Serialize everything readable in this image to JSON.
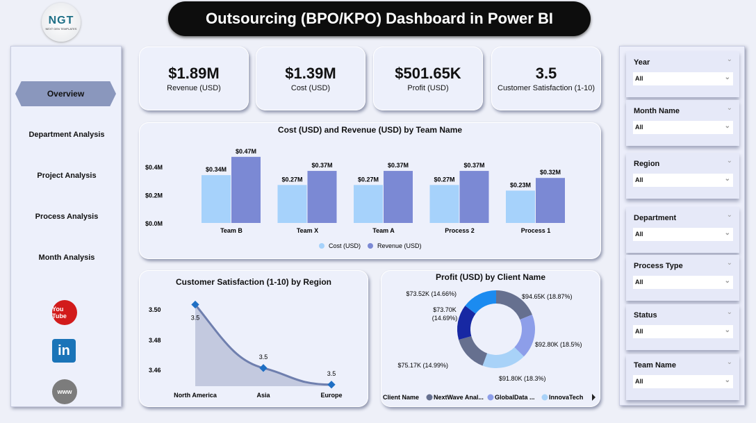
{
  "header": {
    "title": "Outsourcing (BPO/KPO) Dashboard in Power BI",
    "logo_text": "NGT",
    "logo_sub": "NEXT GEN TEMPLATES"
  },
  "nav": {
    "items": [
      {
        "label": "Overview",
        "active": true
      },
      {
        "label": "Department Analysis"
      },
      {
        "label": "Project Analysis"
      },
      {
        "label": "Process Analysis"
      },
      {
        "label": "Month Analysis"
      }
    ],
    "social": [
      {
        "icon": "youtube-icon",
        "label": "You Tube"
      },
      {
        "icon": "linkedin-icon",
        "label": "in"
      },
      {
        "icon": "globe-icon",
        "label": "www"
      }
    ]
  },
  "kpis": [
    {
      "value": "$1.89M",
      "label": "Revenue (USD)"
    },
    {
      "value": "$1.39M",
      "label": "Cost (USD)"
    },
    {
      "value": "$501.65K",
      "label": "Profit (USD)"
    },
    {
      "value": "3.5",
      "label": "Customer Satisfaction (1-10)"
    }
  ],
  "chart_data": [
    {
      "type": "bar",
      "title": "Cost (USD) and Revenue (USD) by Team Name",
      "categories": [
        "Team B",
        "Team X",
        "Team A",
        "Process 2",
        "Process 1"
      ],
      "series": [
        {
          "name": "Cost (USD)",
          "values": [
            0.34,
            0.27,
            0.27,
            0.27,
            0.23
          ],
          "labels": [
            "$0.34M",
            "$0.27M",
            "$0.27M",
            "$0.27M",
            "$0.23M"
          ],
          "color": "#a6d2fb"
        },
        {
          "name": "Revenue (USD)",
          "values": [
            0.47,
            0.37,
            0.37,
            0.37,
            0.32
          ],
          "labels": [
            "$0.47M",
            "$0.37M",
            "$0.37M",
            "$0.37M",
            "$0.32M"
          ],
          "color": "#7b89d4"
        }
      ],
      "yticks": [
        "$0.0M",
        "$0.2M",
        "$0.4M"
      ],
      "ylim": [
        0,
        0.5
      ],
      "legend": "bottom"
    },
    {
      "type": "area",
      "title": "Customer Satisfaction (1-10) by Region",
      "categories": [
        "North America",
        "Asia",
        "Europe"
      ],
      "values": [
        3.503,
        3.461,
        3.45
      ],
      "labels": [
        "3.5",
        "3.5",
        "3.5"
      ],
      "yticks": [
        "3.46",
        "3.48",
        "3.50"
      ],
      "color": "#6f7fae"
    },
    {
      "type": "pie",
      "title": "Profit (USD) by Client Name",
      "values": [
        94.65,
        92.8,
        91.8,
        75.17,
        73.7,
        73.52
      ],
      "labels": [
        "$94.65K (18.87%)",
        "$92.80K (18.5%)",
        "$91.80K (18.3%)",
        "$75.17K (14.99%)",
        "$73.70K (14.69%)",
        "$73.52K (14.66%)"
      ],
      "colors": [
        "#66708f",
        "#8d9ee9",
        "#a8d2f8",
        "#66708f",
        "#1728a3",
        "#1b8bf0"
      ],
      "legend_title": "Client Name",
      "legend": [
        {
          "name": "NextWave Anal...",
          "color": "#66708f"
        },
        {
          "name": "GlobalData ...",
          "color": "#8d9ee9"
        },
        {
          "name": "InnovaTech",
          "color": "#a8d2f8"
        }
      ]
    }
  ],
  "filters": [
    {
      "label": "Year",
      "value": "All"
    },
    {
      "label": "Month Name",
      "value": "All"
    },
    {
      "label": "Region",
      "value": "All"
    },
    {
      "label": "Department",
      "value": "All"
    },
    {
      "label": "Process Type",
      "value": "All"
    },
    {
      "label": "Status",
      "value": "All"
    },
    {
      "label": "Team Name",
      "value": "All"
    }
  ]
}
